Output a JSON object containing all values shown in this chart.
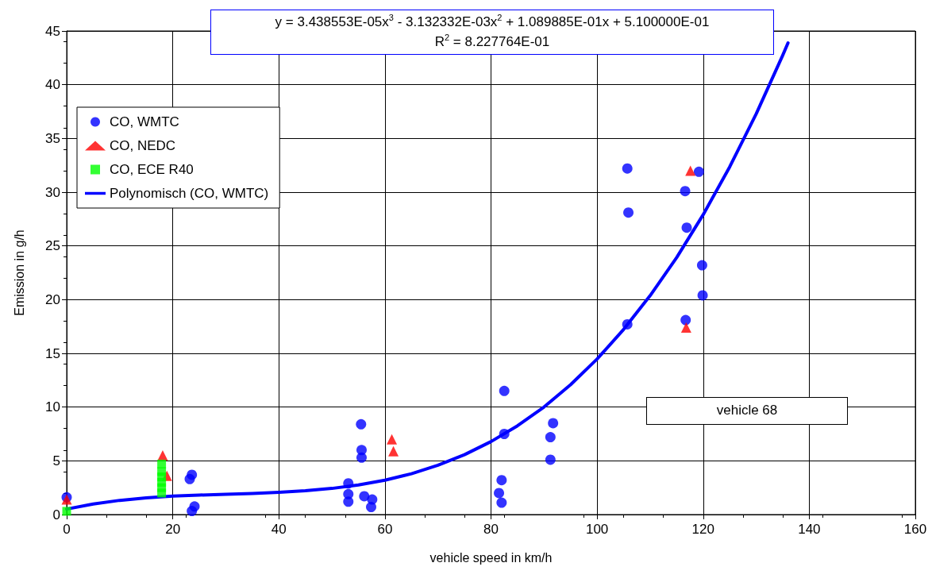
{
  "chart_data": {
    "type": "scatter",
    "xlabel": "vehicle speed in km/h",
    "ylabel": "Emission in g/h",
    "xlim": [
      0,
      160
    ],
    "xticks": [
      0,
      20,
      40,
      60,
      80,
      100,
      120,
      140,
      160
    ],
    "ylim": [
      0,
      45
    ],
    "yticks": [
      0,
      5,
      10,
      15,
      20,
      25,
      30,
      35,
      40,
      45
    ],
    "grid": true,
    "legend": "top left",
    "annotations": [
      "y = 3.438553E-05x$^{3}$ - 3.132332E-03x$^{2}$ + 1.089885E-01x + 5.100000E-01\nR$^{2}$ = 8.227764E-01",
      "vehicle 68"
    ],
    "series": [
      {
        "name": "CO, WMTC",
        "color": "#0000ff",
        "marker": "circle",
        "x": [
          0,
          23.6,
          23.2,
          24.1,
          23.6,
          55.5,
          55.6,
          55.6,
          53.1,
          53.1,
          53.1,
          56.1,
          57.6,
          57.4,
          82.5,
          82.5,
          82.0,
          81.5,
          82.0,
          91.7,
          91.2,
          91.2,
          105.7,
          105.9,
          116.6,
          119.2,
          116.9,
          119.8,
          119.9,
          105.7,
          116.7
        ],
        "values": [
          1.6,
          3.7,
          3.3,
          0.75,
          0.33,
          8.4,
          6.0,
          5.3,
          2.9,
          1.9,
          1.2,
          1.7,
          1.4,
          0.7,
          11.5,
          7.5,
          3.2,
          2.0,
          1.1,
          8.5,
          7.2,
          5.1,
          32.2,
          28.1,
          30.1,
          31.9,
          26.7,
          23.2,
          20.4,
          17.7,
          18.1
        ]
      },
      {
        "name": "CO, NEDC",
        "color": "#ff0000",
        "marker": "triangle",
        "x": [
          0,
          18.1,
          18.9,
          61.3,
          61.6,
          117.6,
          116.8
        ],
        "values": [
          1.4,
          5.5,
          3.6,
          7.0,
          5.9,
          32.0,
          17.4
        ]
      },
      {
        "name": "CO, ECE R40",
        "color": "#00ff00",
        "marker": "square",
        "x": [
          17.9,
          17.9,
          17.9,
          17.9,
          17.9,
          17.9,
          0
        ],
        "values": [
          4.7,
          4.0,
          3.5,
          3.0,
          2.5,
          2.0,
          0.3
        ]
      },
      {
        "name": "Polynomisch (CO, WMTC)",
        "type": "line",
        "color": "#0000ff",
        "marker": "none",
        "line_style": "solid",
        "x": [
          0,
          5,
          10,
          15,
          20,
          25,
          30,
          35,
          40,
          45,
          50,
          55,
          60,
          65,
          70,
          75,
          80,
          85,
          90,
          95,
          100,
          105,
          110,
          115,
          120,
          125,
          130,
          135,
          136
        ],
        "values": [
          0.51,
          0.98,
          1.32,
          1.56,
          1.71,
          1.81,
          1.89,
          1.96,
          2.06,
          2.21,
          2.43,
          2.75,
          3.2,
          3.8,
          4.59,
          5.57,
          6.79,
          8.26,
          10.01,
          12.08,
          14.47,
          17.23,
          20.37,
          23.91,
          27.9,
          32.35,
          37.29,
          42.74,
          43.89
        ]
      }
    ]
  }
}
